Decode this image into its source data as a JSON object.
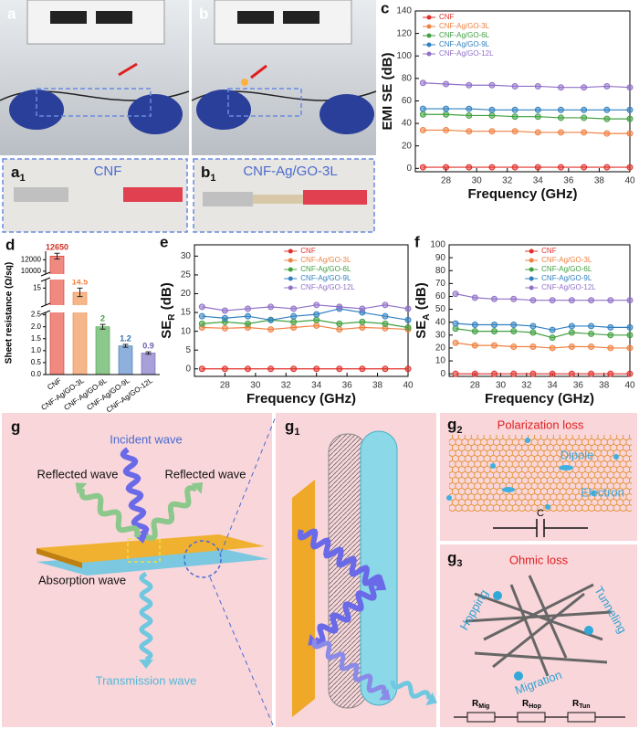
{
  "chart_data": [
    {
      "type": "line",
      "panel": "c",
      "y_label": "EMI SE (dB)",
      "x_label": "Frequency (GHz)",
      "legend": "upper left",
      "xlim": [
        26,
        40
      ],
      "xticks": [
        28,
        30,
        32,
        34,
        36,
        38,
        40
      ],
      "ylim": [
        -3,
        140
      ],
      "yticks": [
        0,
        20,
        40,
        60,
        80,
        100,
        120,
        140
      ],
      "x": [
        26.5,
        28,
        29.5,
        31,
        32.5,
        34,
        35.5,
        37,
        38.5,
        40
      ],
      "series": [
        {
          "name": "CNF",
          "color": "#e0302a",
          "values": [
            1,
            1,
            1,
            1,
            1,
            1,
            1,
            1,
            1,
            1
          ]
        },
        {
          "name": "CNF-Ag/GO-3L",
          "color": "#f08040",
          "values": [
            34,
            34,
            33,
            33,
            33,
            32,
            32,
            32,
            31,
            31
          ]
        },
        {
          "name": "CNF-Ag/GO-6L",
          "color": "#40a040",
          "values": [
            48,
            48,
            47,
            47,
            46,
            46,
            45,
            45,
            44,
            44
          ]
        },
        {
          "name": "CNF-Ag/GO-9L",
          "color": "#3080c0",
          "values": [
            53,
            53,
            53,
            52,
            52,
            52,
            52,
            52,
            52,
            52
          ]
        },
        {
          "name": "CNF-Ag/GO-12L",
          "color": "#9070c8",
          "values": [
            76,
            75,
            74,
            74,
            73,
            73,
            72,
            72,
            73,
            72
          ]
        }
      ]
    },
    {
      "type": "bar",
      "panel": "d",
      "y_label": "Sheet resistance (Ω/sq)",
      "categories": [
        "CNF",
        "CNF-Ag/GO-3L",
        "CNF-Ag/GO-6L",
        "CNF-Ag/GO-9L",
        "CNF-Ag/GO-12L"
      ],
      "values": [
        12650,
        14.5,
        2,
        1.2,
        0.9
      ],
      "errors": [
        500,
        0.5,
        0.1,
        0.06,
        0.05
      ],
      "colors": [
        "#f08a80",
        "#f5b78a",
        "#8cc88c",
        "#8fb0dc",
        "#a8a0d8"
      ],
      "label_colors": [
        "#d03020",
        "#f08040",
        "#40a040",
        "#3070b0",
        "#7060b0"
      ],
      "ysegments": [
        {
          "ylim": [
            0,
            2.6
          ],
          "yticks": [
            {
              "value": 0,
              "label": "0.0"
            },
            {
              "value": 0.5,
              "label": "0.5"
            },
            {
              "value": 1,
              "label": "1.0"
            },
            {
              "value": 1.5,
              "label": "1.5"
            },
            {
              "value": 2,
              "label": "2.0"
            },
            {
              "value": 2.5,
              "label": "2.5"
            }
          ]
        },
        {
          "ylim": [
            13,
            16
          ],
          "yticks": [
            15
          ]
        },
        {
          "ylim": [
            9500,
            13500
          ],
          "yticks": [
            10000,
            12000
          ]
        }
      ]
    },
    {
      "type": "line",
      "panel": "e",
      "y_label": "SE",
      "y_label_sub": "R",
      "y_label_unit": " (dB)",
      "x_label": "Frequency (GHz)",
      "legend": "upper right",
      "xlim": [
        26,
        40
      ],
      "xticks": [
        28,
        30,
        32,
        34,
        36,
        38,
        40
      ],
      "ylim": [
        -2,
        33
      ],
      "yticks": [
        0,
        5,
        10,
        15,
        20,
        25,
        30
      ],
      "x": [
        26.5,
        28,
        29.5,
        31,
        32.5,
        34,
        35.5,
        37,
        38.5,
        40
      ],
      "series": [
        {
          "name": "CNF",
          "color": "#e0302a",
          "values": [
            0,
            0,
            0,
            0,
            0,
            0,
            0,
            0,
            0,
            0
          ]
        },
        {
          "name": "CNF-Ag/GO-3L",
          "color": "#f08040",
          "values": [
            11,
            10.8,
            11,
            10.5,
            11,
            11.5,
            10.5,
            11,
            10.8,
            10.5
          ]
        },
        {
          "name": "CNF-Ag/GO-6L",
          "color": "#40a040",
          "values": [
            12,
            12.5,
            12,
            13,
            12.5,
            13,
            12,
            12.5,
            12,
            11
          ]
        },
        {
          "name": "CNF-Ag/GO-9L",
          "color": "#3080c0",
          "values": [
            14,
            13.5,
            14,
            13,
            14,
            14.5,
            16,
            15,
            14,
            13
          ]
        },
        {
          "name": "CNF-Ag/GO-12L",
          "color": "#9070c8",
          "values": [
            16.5,
            15.5,
            16,
            16.5,
            16,
            17,
            16.5,
            16,
            17,
            16
          ]
        }
      ]
    },
    {
      "type": "line",
      "panel": "f",
      "y_label": "SE",
      "y_label_sub": "A",
      "y_label_unit": " (dB)",
      "x_label": "Frequency (GHz)",
      "legend": "upper right",
      "xlim": [
        26,
        40
      ],
      "xticks": [
        28,
        30,
        32,
        34,
        36,
        38,
        40
      ],
      "ylim": [
        -2,
        100
      ],
      "yticks": [
        0,
        10,
        20,
        30,
        40,
        50,
        60,
        70,
        80,
        90,
        100
      ],
      "x": [
        26.5,
        28,
        29.5,
        31,
        32.5,
        34,
        35.5,
        37,
        38.5,
        40
      ],
      "series": [
        {
          "name": "CNF",
          "color": "#e0302a",
          "values": [
            0,
            0,
            0,
            0,
            0,
            0,
            0,
            0,
            0,
            0
          ]
        },
        {
          "name": "CNF-Ag/GO-3L",
          "color": "#f08040",
          "values": [
            24,
            22,
            22,
            21,
            21,
            20,
            21,
            21,
            20,
            20
          ]
        },
        {
          "name": "CNF-Ag/GO-6L",
          "color": "#40a040",
          "values": [
            35,
            33,
            33,
            33,
            32,
            28,
            32,
            31,
            30,
            30
          ]
        },
        {
          "name": "CNF-Ag/GO-9L",
          "color": "#3080c0",
          "values": [
            39,
            38,
            38,
            38,
            37,
            34,
            37,
            37,
            36,
            36
          ]
        },
        {
          "name": "CNF-Ag/GO-12L",
          "color": "#9070c8",
          "values": [
            62,
            59,
            58,
            58,
            57,
            57,
            57,
            57,
            57,
            57
          ]
        }
      ]
    }
  ],
  "figure": {
    "a": "a",
    "b": "b",
    "a1": "a",
    "a1_sub": "1",
    "b1": "b",
    "b1_sub": "1",
    "a1_caption": "CNF",
    "b1_caption": "CNF-Ag/GO-3L",
    "g": "g",
    "g1": "g",
    "g1_sub": "1",
    "g2": "g",
    "g2_sub": "2",
    "g3": "g",
    "g3_sub": "3",
    "incident": "Incident wave",
    "reflected_left": "Reflected wave",
    "reflected_right": "Reflected wave",
    "absorption": "Absorption wave",
    "transmission": "Transmission wave",
    "polarization": "Polarization loss",
    "dipole": "Dipole",
    "electron": "Electron",
    "capacitor": "C",
    "ohmic": "Ohmic loss",
    "hopping": "Hopping",
    "tunneling": "Tunneling",
    "migration": "Migration",
    "r": "R",
    "r_mig": "Mig",
    "r_hop": "Hop",
    "r_tun": "Tun"
  }
}
